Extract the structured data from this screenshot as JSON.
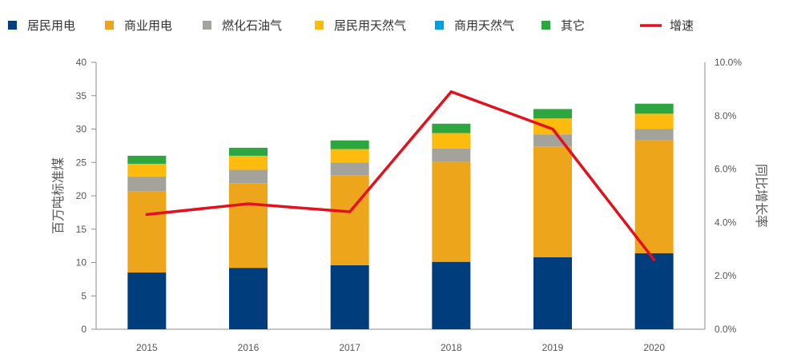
{
  "chart_data": {
    "type": "bar",
    "stacked": true,
    "categories": [
      "2015",
      "2016",
      "2017",
      "2018",
      "2019",
      "2020"
    ],
    "series": [
      {
        "name": "居民用电",
        "color": "#003d7c",
        "values": [
          8.5,
          9.2,
          9.6,
          10.1,
          10.8,
          11.4
        ]
      },
      {
        "name": "商业用电",
        "color": "#eda61c",
        "values": [
          12.2,
          12.7,
          13.5,
          15.0,
          16.6,
          16.9
        ]
      },
      {
        "name": "燃化石油气",
        "color": "#a3a39b",
        "values": [
          2.2,
          2.0,
          1.9,
          2.0,
          1.8,
          1.7
        ]
      },
      {
        "name": "居民用天然气",
        "color": "#fdbb0d",
        "values": [
          1.9,
          2.1,
          2.0,
          2.3,
          2.4,
          2.3
        ]
      },
      {
        "name": "商用天然气",
        "color": "#009fdf",
        "values": [
          0.0,
          0.0,
          0.0,
          0.0,
          0.0,
          0.0
        ]
      },
      {
        "name": "其它",
        "color": "#2ea640",
        "values": [
          1.2,
          1.2,
          1.3,
          1.4,
          1.4,
          1.5
        ]
      }
    ],
    "line": {
      "name": "增速",
      "color": "#e3101e",
      "values": [
        4.3,
        4.7,
        4.4,
        8.9,
        7.5,
        2.6
      ]
    },
    "ylabel": "百万吨标准煤",
    "y2label": "同比增长率",
    "ylim": [
      0,
      40
    ],
    "yticks": [
      "0",
      "5",
      "10",
      "15",
      "20",
      "25",
      "30",
      "35",
      "40"
    ],
    "y2lim": [
      0,
      10
    ],
    "y2ticks": [
      "0.0%",
      "2.0%",
      "4.0%",
      "6.0%",
      "8.0%",
      "10.0%"
    ],
    "grid": false,
    "legend": "top"
  }
}
